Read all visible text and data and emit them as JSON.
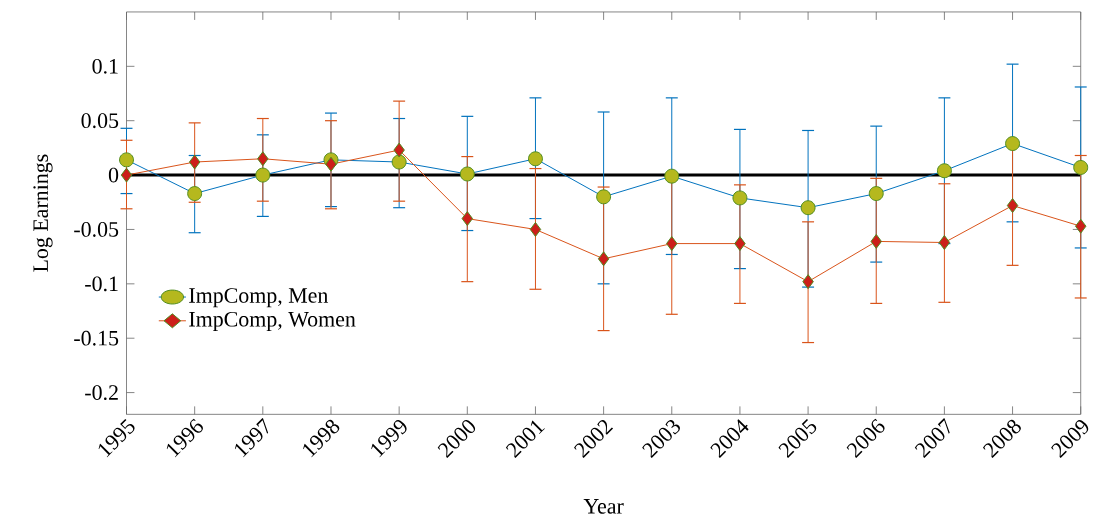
{
  "chart_data": {
    "type": "line",
    "xlabel": "Year",
    "ylabel": "Log Earnings",
    "x": [
      1995,
      1996,
      1997,
      1998,
      1999,
      2000,
      2001,
      2002,
      2003,
      2004,
      2005,
      2006,
      2007,
      2008,
      2009
    ],
    "series": [
      {
        "name": "ImpComp, Men",
        "color": "#0072bd",
        "marker": "circle",
        "values": [
          0.014,
          -0.017,
          0.0,
          0.014,
          0.012,
          0.001,
          0.015,
          -0.02,
          -0.001,
          -0.021,
          -0.03,
          -0.017,
          0.004,
          0.029,
          0.007
        ],
        "errors": [
          [
            -0.017,
            0.043
          ],
          [
            -0.053,
            0.018
          ],
          [
            -0.038,
            0.037
          ],
          [
            -0.029,
            0.057
          ],
          [
            -0.03,
            0.052
          ],
          [
            -0.051,
            0.054
          ],
          [
            -0.04,
            0.071
          ],
          [
            -0.1,
            0.058
          ],
          [
            -0.073,
            0.071
          ],
          [
            -0.086,
            0.042
          ],
          [
            -0.103,
            0.041
          ],
          [
            -0.08,
            0.045
          ],
          [
            -0.063,
            0.071
          ],
          [
            -0.043,
            0.102
          ],
          [
            -0.067,
            0.081
          ]
        ]
      },
      {
        "name": "ImpComp, Women",
        "color": "#d95319",
        "marker": "diamond",
        "values": [
          0.0,
          0.012,
          0.015,
          0.01,
          0.023,
          -0.04,
          -0.05,
          -0.077,
          -0.063,
          -0.063,
          -0.098,
          -0.061,
          -0.062,
          -0.028,
          -0.047
        ],
        "errors": [
          [
            -0.031,
            0.032
          ],
          [
            -0.025,
            0.048
          ],
          [
            -0.024,
            0.052
          ],
          [
            -0.031,
            0.05
          ],
          [
            -0.024,
            0.068
          ],
          [
            -0.098,
            0.017
          ],
          [
            -0.105,
            0.006
          ],
          [
            -0.143,
            -0.011
          ],
          [
            -0.128,
            0.002
          ],
          [
            -0.118,
            -0.009
          ],
          [
            -0.154,
            -0.043
          ],
          [
            -0.118,
            -0.003
          ],
          [
            -0.117,
            -0.008
          ],
          [
            -0.083,
            0.026
          ],
          [
            -0.113,
            0.018
          ]
        ]
      }
    ],
    "xlim": [
      1995,
      2009
    ],
    "ylim": [
      -0.22,
      0.15
    ],
    "xticks": [
      1995,
      1996,
      1997,
      1998,
      1999,
      2000,
      2001,
      2002,
      2003,
      2004,
      2005,
      2006,
      2007,
      2008,
      2009
    ],
    "yticks": [
      -0.2,
      -0.15,
      -0.1,
      -0.05,
      0,
      0.05,
      0.1
    ],
    "ref_lines": [
      {
        "axis": "y",
        "value": 0,
        "color": "#000000"
      }
    ],
    "legend": "left",
    "grid": false,
    "line_style": "solid"
  }
}
